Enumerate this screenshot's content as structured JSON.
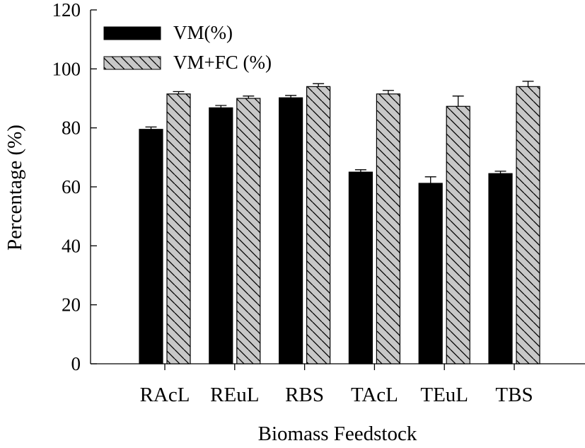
{
  "chart_data": {
    "type": "bar",
    "title": "",
    "xlabel": "Biomass Feedstock",
    "ylabel": "Percentage (%)",
    "ylim": [
      0,
      120
    ],
    "yticks": [
      0,
      20,
      40,
      60,
      80,
      100,
      120
    ],
    "grid": false,
    "legend_position": "top-left",
    "categories": [
      "RAcL",
      "REuL",
      "RBS",
      "TAcL",
      "TEuL",
      "TBS"
    ],
    "series": [
      {
        "name": "VM(%)",
        "values": [
          79.5,
          86.8,
          90.2,
          65.0,
          61.2,
          64.5
        ],
        "errors": [
          0.8,
          0.8,
          0.8,
          0.8,
          2.2,
          0.8
        ],
        "color": "#000000",
        "pattern": "solid"
      },
      {
        "name": "VM+FC (%)",
        "values": [
          91.5,
          90.0,
          94.0,
          91.5,
          87.3,
          94.0
        ],
        "errors": [
          0.8,
          0.8,
          1.0,
          1.2,
          3.5,
          1.8
        ],
        "color": "#c8c8c8",
        "pattern": "hatch"
      }
    ]
  }
}
